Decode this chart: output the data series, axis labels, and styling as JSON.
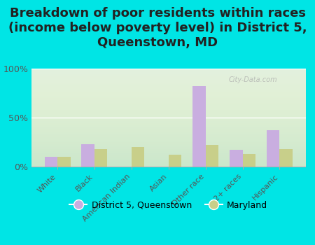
{
  "title": "Breakdown of poor residents within races\n(income below poverty level) in District 5,\nQueenstown, MD",
  "categories": [
    "White",
    "Black",
    "American Indian",
    "Asian",
    "Other race",
    "2+ races",
    "Hispanic"
  ],
  "district_values": [
    10,
    23,
    0,
    0,
    82,
    17,
    37
  ],
  "maryland_values": [
    10,
    18,
    20,
    12,
    22,
    13,
    18
  ],
  "district_color": "#c9aee0",
  "maryland_color": "#c8cf8a",
  "watermark": "City-Data.com",
  "ylim": [
    0,
    100
  ],
  "yticks": [
    0,
    50,
    100
  ],
  "ytick_labels": [
    "0%",
    "50%",
    "100%"
  ],
  "legend_label1": "District 5, Queenstown",
  "legend_label2": "Maryland",
  "title_fontsize": 13,
  "bar_width": 0.35,
  "figure_bg": "#00e5e5"
}
